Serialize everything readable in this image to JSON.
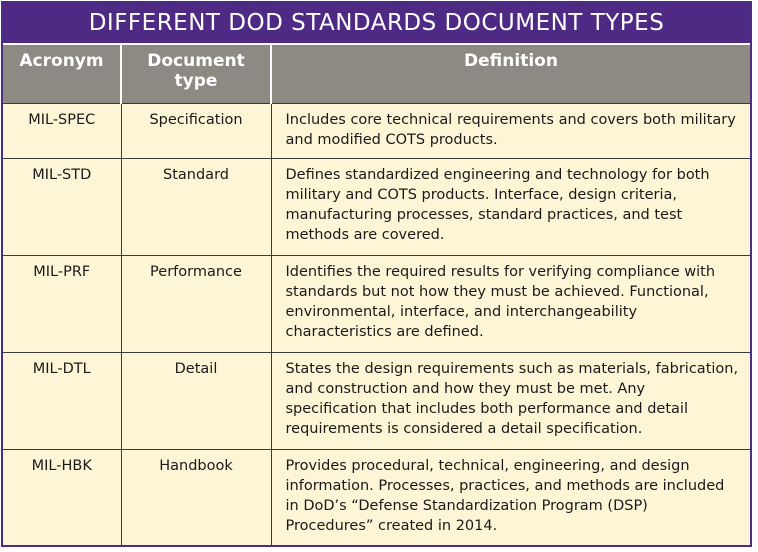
{
  "title": "DIFFERENT DOD STANDARDS DOCUMENT TYPES",
  "columns": {
    "acronym": "Acronym",
    "type": "Document type",
    "definition": "Definition"
  },
  "rows": [
    {
      "acronym": "MIL-SPEC",
      "type": "Specification",
      "definition": "Includes core technical requirements and covers both military and modified COTS products."
    },
    {
      "acronym": "MIL-STD",
      "type": "Standard",
      "definition": "Defines standardized engineering and technology for both military and COTS products. Interface, design criteria, manufacturing processes, standard practices, and test methods are covered."
    },
    {
      "acronym": "MIL-PRF",
      "type": "Performance",
      "definition": "Identifies the required results for verifying compliance with standards but not how they must be achieved. Functional, environmental, interface, and interchangeability characteristics are defined."
    },
    {
      "acronym": "MIL-DTL",
      "type": "Detail",
      "definition": "States the design requirements such as materials, fabrication, and construction and how they must be met. Any specification that includes both performance and detail requirements is considered a detail specification."
    },
    {
      "acronym": "MIL-HBK",
      "type": "Handbook",
      "definition": "Provides procedural, technical, engineering, and design information. Processes, practices, and methods are included in DoD’s “Defense Standardization Program (DSP) Procedures” created in 2014."
    }
  ]
}
